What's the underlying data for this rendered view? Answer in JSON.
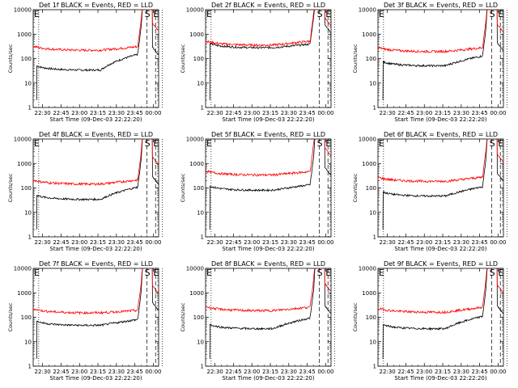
{
  "figure": {
    "width": 640,
    "height": 480
  },
  "chart_data": [
    {
      "type": "line",
      "title": "Det 1f BLACK = Events, RED = LLD",
      "xlabel": "Start Time (09-Dec-03 22:22:20)",
      "ylabel": "Counts/sec",
      "yscale": "log",
      "ylim": [
        1,
        10000
      ],
      "xlim": [
        0,
        102
      ],
      "x_ticks": [
        "22:30",
        "22:45",
        "23:00",
        "23:15",
        "23:30",
        "23:45",
        "00:00"
      ],
      "y_ticks": [
        "1",
        "10",
        "100",
        "1000",
        "10000"
      ],
      "markers": {
        "E_left": "E",
        "S": "S",
        "E": "E"
      },
      "series": [
        {
          "name": "BLACK = Events",
          "color": "#000000",
          "baseline": 40,
          "end_value": 180
        },
        {
          "name": "RED = LLD",
          "color": "#ff0000",
          "baseline": 260,
          "end_value": 330
        }
      ]
    },
    {
      "type": "line",
      "title": "Det 2f BLACK = Events, RED = LLD",
      "xlabel": "Start Time (09-Dec-03 22:22:20)",
      "ylabel": "Counts/sec",
      "yscale": "log",
      "ylim": [
        1,
        10000
      ],
      "xlim": [
        0,
        102
      ],
      "x_ticks": [
        "22:30",
        "22:45",
        "23:00",
        "23:15",
        "23:30",
        "23:45",
        "00:00"
      ],
      "y_ticks": [
        "1",
        "10",
        "100",
        "1000",
        "10000"
      ],
      "markers": {
        "E_left": "E",
        "S": "S",
        "E": "E"
      },
      "series": [
        {
          "name": "BLACK = Events",
          "color": "#000000",
          "baseline": 330,
          "end_value": 420
        },
        {
          "name": "RED = LLD",
          "color": "#ff0000",
          "baseline": 420,
          "end_value": 560
        }
      ]
    },
    {
      "type": "line",
      "title": "Det 3f BLACK = Events, RED = LLD",
      "xlabel": "Start Time (09-Dec-03 22:22:20)",
      "ylabel": "Counts/sec",
      "yscale": "log",
      "ylim": [
        1,
        10000
      ],
      "xlim": [
        0,
        102
      ],
      "x_ticks": [
        "22:30",
        "22:45",
        "23:00",
        "23:15",
        "23:30",
        "23:45",
        "00:00"
      ],
      "y_ticks": [
        "1",
        "10",
        "100",
        "1000",
        "10000"
      ],
      "markers": {
        "E_left": "E",
        "S": "S",
        "E": "E"
      },
      "series": [
        {
          "name": "BLACK = Events",
          "color": "#000000",
          "baseline": 60,
          "end_value": 150
        },
        {
          "name": "RED = LLD",
          "color": "#ff0000",
          "baseline": 230,
          "end_value": 300
        }
      ]
    },
    {
      "type": "line",
      "title": "Det 4f BLACK = Events, RED = LLD",
      "xlabel": "Start Time (09-Dec-03 22:22:20)",
      "ylabel": "Counts/sec",
      "yscale": "log",
      "ylim": [
        1,
        10000
      ],
      "xlim": [
        0,
        102
      ],
      "x_ticks": [
        "22:30",
        "22:45",
        "23:00",
        "23:15",
        "23:30",
        "23:45",
        "00:00"
      ],
      "y_ticks": [
        "1",
        "10",
        "100",
        "1000",
        "10000"
      ],
      "markers": {
        "E_left": "E",
        "S": "S",
        "E": "E"
      },
      "series": [
        {
          "name": "BLACK = Events",
          "color": "#000000",
          "baseline": 40,
          "end_value": 130
        },
        {
          "name": "RED = LLD",
          "color": "#ff0000",
          "baseline": 170,
          "end_value": 230
        }
      ]
    },
    {
      "type": "line",
      "title": "Det 5f BLACK = Events, RED = LLD",
      "xlabel": "Start Time (09-Dec-03 22:22:20)",
      "ylabel": "Counts/sec",
      "yscale": "log",
      "ylim": [
        1,
        10000
      ],
      "xlim": [
        0,
        102
      ],
      "x_ticks": [
        "22:30",
        "22:45",
        "23:00",
        "23:15",
        "23:30",
        "23:45",
        "00:00"
      ],
      "y_ticks": [
        "1",
        "10",
        "100",
        "1000",
        "10000"
      ],
      "markers": {
        "E_left": "E",
        "S": "S",
        "E": "E"
      },
      "series": [
        {
          "name": "BLACK = Events",
          "color": "#000000",
          "baseline": 95,
          "end_value": 150
        },
        {
          "name": "RED = LLD",
          "color": "#ff0000",
          "baseline": 400,
          "end_value": 500
        }
      ]
    },
    {
      "type": "line",
      "title": "Det 6f BLACK = Events, RED = LLD",
      "xlabel": "Start Time (09-Dec-03 22:22:20)",
      "ylabel": "Counts/sec",
      "yscale": "log",
      "ylim": [
        1,
        10000
      ],
      "xlim": [
        0,
        102
      ],
      "x_ticks": [
        "22:30",
        "22:45",
        "23:00",
        "23:15",
        "23:30",
        "23:45",
        "00:00"
      ],
      "y_ticks": [
        "1",
        "10",
        "100",
        "1000",
        "10000"
      ],
      "markers": {
        "E_left": "E",
        "S": "S",
        "E": "E"
      },
      "series": [
        {
          "name": "BLACK = Events",
          "color": "#000000",
          "baseline": 55,
          "end_value": 130
        },
        {
          "name": "RED = LLD",
          "color": "#ff0000",
          "baseline": 220,
          "end_value": 300
        }
      ]
    },
    {
      "type": "line",
      "title": "Det 7f BLACK = Events, RED = LLD",
      "xlabel": "Start Time (09-Dec-03 22:22:20)",
      "ylabel": "Counts/sec",
      "yscale": "log",
      "ylim": [
        1,
        10000
      ],
      "xlim": [
        0,
        102
      ],
      "x_ticks": [
        "22:30",
        "22:45",
        "23:00",
        "23:15",
        "23:30",
        "23:45",
        "00:00"
      ],
      "y_ticks": [
        "1",
        "10",
        "100",
        "1000",
        "10000"
      ],
      "markers": {
        "E_left": "E",
        "S": "S",
        "E": "E"
      },
      "series": [
        {
          "name": "BLACK = Events",
          "color": "#000000",
          "baseline": 55,
          "end_value": 90
        },
        {
          "name": "RED = LLD",
          "color": "#ff0000",
          "baseline": 180,
          "end_value": 200
        }
      ]
    },
    {
      "type": "line",
      "title": "Det 8f BLACK = Events, RED = LLD",
      "xlabel": "Start Time (09-Dec-03 22:22:20)",
      "ylabel": "Counts/sec",
      "yscale": "log",
      "ylim": [
        1,
        10000
      ],
      "xlim": [
        0,
        102
      ],
      "x_ticks": [
        "22:30",
        "22:45",
        "23:00",
        "23:15",
        "23:30",
        "23:45",
        "00:00"
      ],
      "y_ticks": [
        "1",
        "10",
        "100",
        "1000",
        "10000"
      ],
      "markers": {
        "E_left": "E",
        "S": "S",
        "E": "E"
      },
      "series": [
        {
          "name": "BLACK = Events",
          "color": "#000000",
          "baseline": 40,
          "end_value": 110
        },
        {
          "name": "RED = LLD",
          "color": "#ff0000",
          "baseline": 220,
          "end_value": 280
        }
      ]
    },
    {
      "type": "line",
      "title": "Det 9f BLACK = Events, RED = LLD",
      "xlabel": "Start Time (09-Dec-03 22:22:20)",
      "ylabel": "Counts/sec",
      "yscale": "log",
      "ylim": [
        1,
        10000
      ],
      "xlim": [
        0,
        102
      ],
      "x_ticks": [
        "22:30",
        "22:45",
        "23:00",
        "23:15",
        "23:30",
        "23:45",
        "00:00"
      ],
      "y_ticks": [
        "1",
        "10",
        "100",
        "1000",
        "10000"
      ],
      "markers": {
        "E_left": "E",
        "S": "S",
        "E": "E"
      },
      "series": [
        {
          "name": "BLACK = Events",
          "color": "#000000",
          "baseline": 40,
          "end_value": 130
        },
        {
          "name": "RED = LLD",
          "color": "#ff0000",
          "baseline": 190,
          "end_value": 280
        }
      ]
    }
  ]
}
